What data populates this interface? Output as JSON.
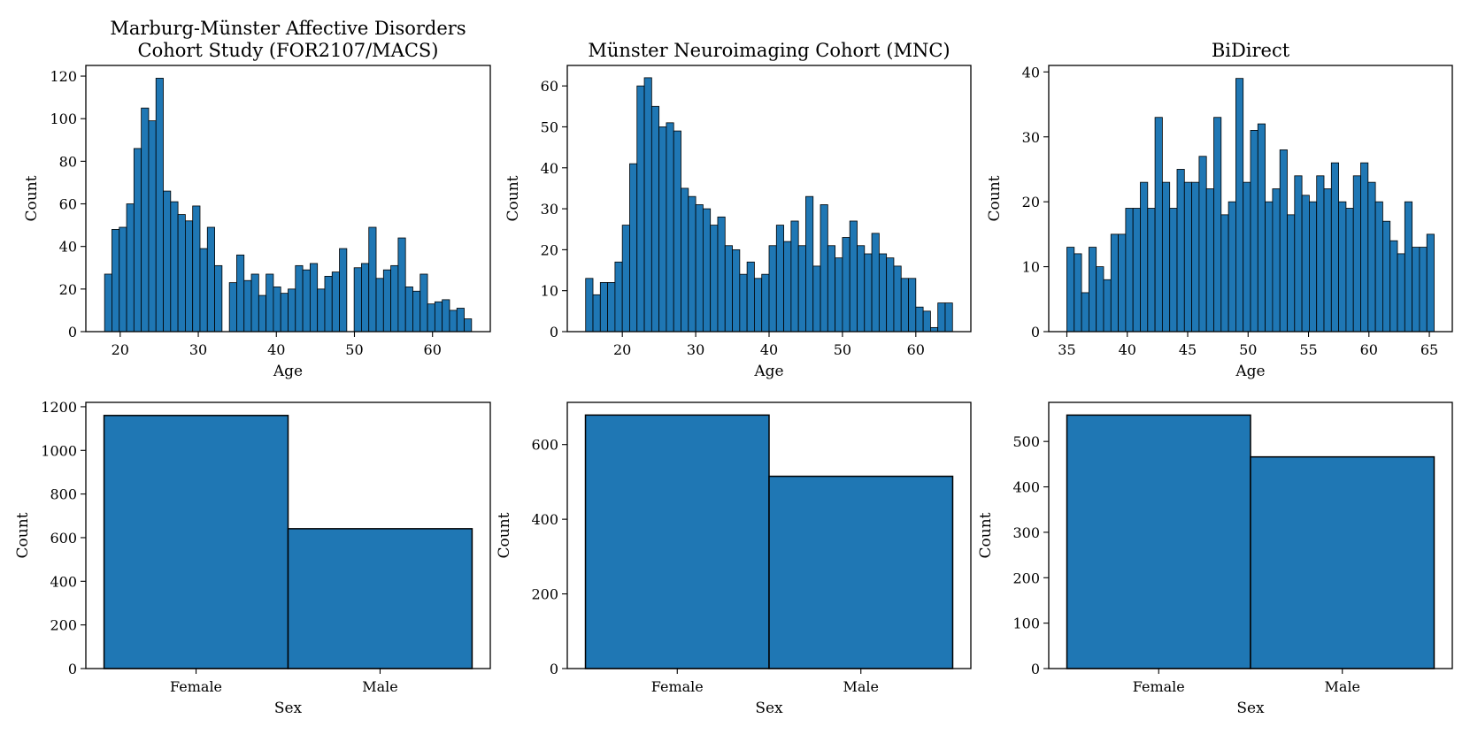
{
  "chart_data": [
    {
      "type": "bar",
      "title": [
        "Marburg-Münster Affective Disorders",
        "Cohort Study (FOR2107/MACS)"
      ],
      "xlabel": "Age",
      "ylabel": "Count",
      "bin_start": 18,
      "bin_width": 0.94,
      "values": [
        27,
        48,
        49,
        60,
        86,
        105,
        99,
        119,
        66,
        61,
        55,
        52,
        59,
        39,
        49,
        31,
        0,
        23,
        36,
        24,
        27,
        17,
        27,
        21,
        18,
        20,
        31,
        29,
        32,
        20,
        26,
        28,
        39,
        0,
        30,
        32,
        49,
        25,
        29,
        31,
        44,
        21,
        19,
        27,
        13,
        14,
        15,
        10,
        11,
        6
      ],
      "xlim": [
        15.6,
        67.4
      ],
      "ylim": [
        0,
        125
      ],
      "xticks": [
        20,
        30,
        40,
        50,
        60
      ],
      "yticks": [
        0,
        20,
        40,
        60,
        80,
        100,
        120
      ],
      "color": "#1f77b4",
      "grid": false
    },
    {
      "type": "bar",
      "title": [
        "Münster Neuroimaging Cohort (MNC)"
      ],
      "xlabel": "Age",
      "ylabel": "Count",
      "bin_start": 15,
      "bin_width": 1.0,
      "values": [
        13,
        9,
        12,
        12,
        17,
        26,
        41,
        60,
        62,
        55,
        50,
        51,
        49,
        35,
        33,
        31,
        30,
        26,
        28,
        21,
        20,
        14,
        17,
        13,
        14,
        21,
        26,
        22,
        27,
        21,
        33,
        16,
        31,
        21,
        18,
        23,
        27,
        21,
        19,
        24,
        19,
        18,
        16,
        13,
        13,
        6,
        5,
        1,
        7,
        7
      ],
      "xlim": [
        12.5,
        67.5
      ],
      "ylim": [
        0,
        65
      ],
      "xticks": [
        20,
        30,
        40,
        50,
        60
      ],
      "yticks": [
        0,
        10,
        20,
        30,
        40,
        50,
        60
      ],
      "color": "#1f77b4",
      "grid": false
    },
    {
      "type": "bar",
      "title": [
        "BiDirect"
      ],
      "xlabel": "Age",
      "ylabel": "Count",
      "bin_start": 35,
      "bin_width": 0.608,
      "values": [
        13,
        12,
        6,
        13,
        10,
        8,
        15,
        15,
        19,
        19,
        23,
        19,
        33,
        23,
        19,
        25,
        23,
        23,
        27,
        22,
        33,
        18,
        20,
        39,
        23,
        31,
        32,
        20,
        22,
        28,
        18,
        24,
        21,
        20,
        24,
        22,
        26,
        20,
        19,
        24,
        26,
        23,
        20,
        17,
        14,
        12,
        20,
        13,
        13,
        15
      ],
      "xlim": [
        33.5,
        66.9
      ],
      "ylim": [
        0,
        41
      ],
      "xticks": [
        35,
        40,
        45,
        50,
        55,
        60,
        65
      ],
      "yticks": [
        0,
        10,
        20,
        30,
        40
      ],
      "color": "#1f77b4",
      "grid": false
    },
    {
      "type": "bar",
      "title": [],
      "xlabel": "Sex",
      "ylabel": "Count",
      "categories": [
        "Female",
        "Male"
      ],
      "values": [
        1160,
        641
      ],
      "ylim": [
        0,
        1220
      ],
      "yticks": [
        0,
        200,
        400,
        600,
        800,
        1000,
        1200
      ],
      "color": "#1f77b4",
      "grid": false
    },
    {
      "type": "bar",
      "title": [],
      "xlabel": "Sex",
      "ylabel": "Count",
      "categories": [
        "Female",
        "Male"
      ],
      "values": [
        679,
        515
      ],
      "ylim": [
        0,
        713
      ],
      "yticks": [
        0,
        200,
        400,
        600
      ],
      "color": "#1f77b4",
      "grid": false
    },
    {
      "type": "bar",
      "title": [],
      "xlabel": "Sex",
      "ylabel": "Count",
      "categories": [
        "Female",
        "Male"
      ],
      "values": [
        558,
        466
      ],
      "ylim": [
        0,
        586
      ],
      "yticks": [
        0,
        100,
        200,
        300,
        400,
        500
      ],
      "color": "#1f77b4",
      "grid": false
    }
  ]
}
